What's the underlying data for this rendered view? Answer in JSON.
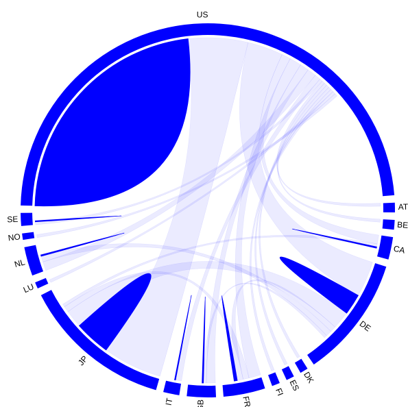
{
  "chart_data": {
    "type": "chord",
    "color": "#0000ff",
    "groups": [
      {
        "name": "US",
        "value": 174
      },
      {
        "name": "AT",
        "value": 3
      },
      {
        "name": "BE",
        "value": 3
      },
      {
        "name": "CA",
        "value": 7
      },
      {
        "name": "DE",
        "value": 38
      },
      {
        "name": "DK",
        "value": 2.5
      },
      {
        "name": "ES",
        "value": 2.5
      },
      {
        "name": "FI",
        "value": 2.5
      },
      {
        "name": "FR",
        "value": 13
      },
      {
        "name": "GB",
        "value": 9
      },
      {
        "name": "IT",
        "value": 5
      },
      {
        "name": "JP",
        "value": 47
      },
      {
        "name": "LU",
        "value": 2
      },
      {
        "name": "NL",
        "value": 9
      },
      {
        "name": "NO",
        "value": 2
      },
      {
        "name": "SE",
        "value": 4
      }
    ],
    "chords": [
      {
        "source": 0,
        "target": 0,
        "value": 82
      },
      {
        "source": 0,
        "target": 11,
        "value": 20
      },
      {
        "source": 0,
        "target": 4,
        "value": 12
      },
      {
        "source": 0,
        "target": 3,
        "value": 3
      },
      {
        "source": 0,
        "target": 8,
        "value": 4
      },
      {
        "source": 0,
        "target": 9,
        "value": 3
      },
      {
        "source": 0,
        "target": 13,
        "value": 3
      },
      {
        "source": 0,
        "target": 10,
        "value": 2
      },
      {
        "source": 0,
        "target": 15,
        "value": 1
      },
      {
        "source": 0,
        "target": 1,
        "value": 1
      },
      {
        "source": 0,
        "target": 2,
        "value": 1
      },
      {
        "source": 0,
        "target": 5,
        "value": 1
      },
      {
        "source": 0,
        "target": 6,
        "value": 1
      },
      {
        "source": 0,
        "target": 7,
        "value": 1
      },
      {
        "source": 0,
        "target": 12,
        "value": 1
      },
      {
        "source": 0,
        "target": 14,
        "value": 1
      },
      {
        "source": 11,
        "target": 11,
        "value": 12
      },
      {
        "source": 4,
        "target": 4,
        "value": 7
      },
      {
        "source": 11,
        "target": 4,
        "value": 6
      },
      {
        "source": 11,
        "target": 8,
        "value": 2
      },
      {
        "source": 4,
        "target": 8,
        "value": 2
      },
      {
        "source": 4,
        "target": 13,
        "value": 2
      },
      {
        "source": 11,
        "target": 3,
        "value": 1
      },
      {
        "source": 9,
        "target": 4,
        "value": 1
      },
      {
        "source": 3,
        "target": 3,
        "value": 0.4
      },
      {
        "source": 8,
        "target": 8,
        "value": 1
      },
      {
        "source": 9,
        "target": 9,
        "value": 0.4
      },
      {
        "source": 10,
        "target": 10,
        "value": 0.3
      },
      {
        "source": 13,
        "target": 13,
        "value": 0.4
      },
      {
        "source": 15,
        "target": 15,
        "value": 0.3
      }
    ]
  }
}
